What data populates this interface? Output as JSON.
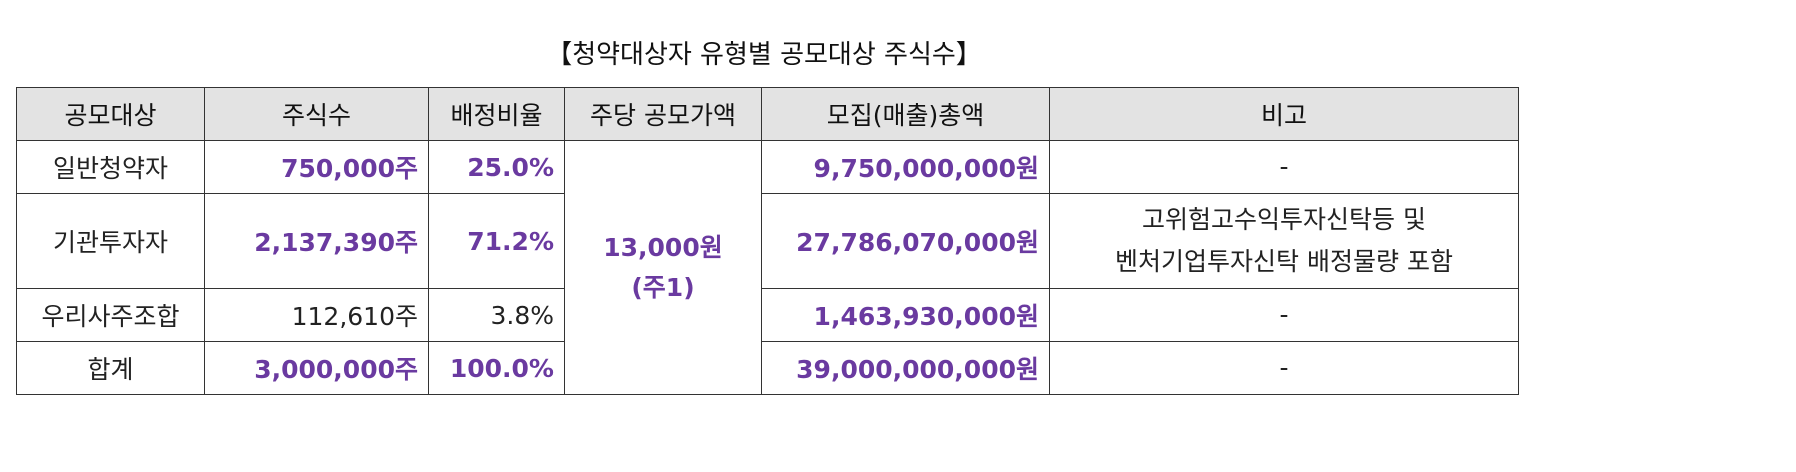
{
  "title": "【청약대상자 유형별 공모대상 주식수】",
  "table": {
    "headers": [
      "공모대상",
      "주식수",
      "배정비율",
      "주당 공모가액",
      "모집(매출)총액",
      "비고"
    ],
    "price": {
      "line1": "13,000원",
      "line2": "(주1)"
    },
    "rows": [
      {
        "type": "일반청약자",
        "shares": "750,000주",
        "ratio": "25.0%",
        "total": "9,750,000,000원",
        "note_line1": "-",
        "note_line2": ""
      },
      {
        "type": "기관투자자",
        "shares": "2,137,390주",
        "ratio": "71.2%",
        "total": "27,786,070,000원",
        "note_line1": "고위험고수익투자신탁등 및",
        "note_line2": "벤처기업투자신탁 배정물량 포함"
      },
      {
        "type": "우리사주조합",
        "shares": "112,610주",
        "ratio": "3.8%",
        "total": "1,463,930,000원",
        "note_line1": "-",
        "note_line2": ""
      },
      {
        "type": "합계",
        "shares": "3,000,000주",
        "ratio": "100.0%",
        "total": "39,000,000,000원",
        "note_line1": "-",
        "note_line2": ""
      }
    ]
  },
  "colors": {
    "highlight": "#6a3aa0",
    "header_bg": "#e3e3e3",
    "border": "#333333"
  }
}
